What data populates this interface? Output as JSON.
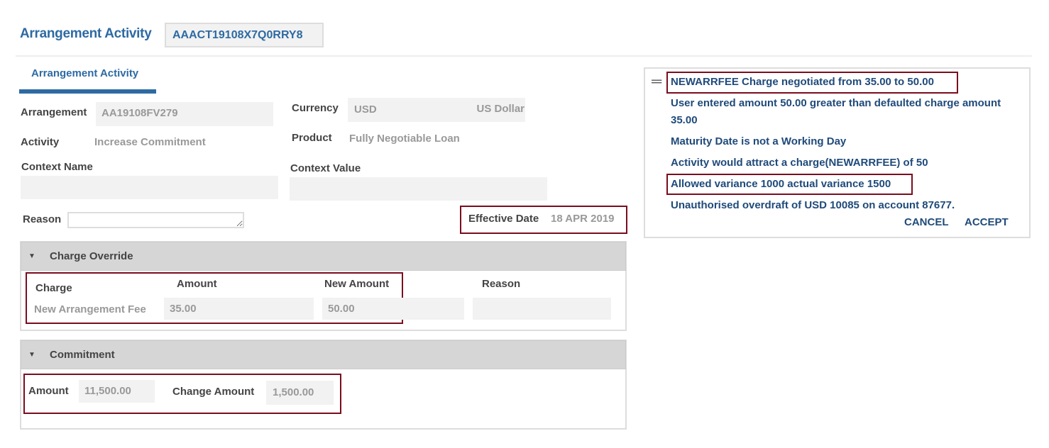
{
  "header": {
    "title": "Arrangement Activity",
    "id": "AAACT19108X7Q0RRY8"
  },
  "tab": {
    "label": "Arrangement Activity"
  },
  "form": {
    "arrangement_label": "Arrangement",
    "arrangement_value": "AA19108FV279",
    "currency_label": "Currency",
    "currency_code": "USD",
    "currency_name": "US Dollar",
    "activity_label": "Activity",
    "activity_value": "Increase Commitment",
    "product_label": "Product",
    "product_value": "Fully Negotiable Loan",
    "context_name_label": "Context Name",
    "context_value_label": "Context Value",
    "reason_label": "Reason",
    "effective_date_label": "Effective Date",
    "effective_date_value": "18 APR 2019"
  },
  "charge_override": {
    "title": "Charge Override",
    "headers": [
      "Charge",
      "Amount",
      "New Amount",
      "Reason"
    ],
    "row": {
      "charge": "New Arrangement Fee",
      "amount": "35.00",
      "new_amount": "50.00"
    }
  },
  "commitment": {
    "title": "Commitment",
    "amount_label": "Amount",
    "amount_value": "11,500.00",
    "change_label": "Change Amount",
    "change_value": "1,500.00"
  },
  "messages": {
    "items": [
      "NEWARRFEE Charge negotiated from 35.00 to 50.00",
      "User entered amount 50.00 greater than defaulted charge amount",
      "35.00",
      "Maturity Date is not a Working Day",
      "Activity would attract a charge(NEWARRFEE) of 50",
      "Allowed variance 1000 actual variance 1500",
      "Unauthorised overdraft of USD 10085 on account 87677."
    ],
    "cancel": "CANCEL",
    "accept": "ACCEPT"
  },
  "colors": {
    "accent": "#2d6aa3",
    "highlight": "#7a0c1e"
  }
}
